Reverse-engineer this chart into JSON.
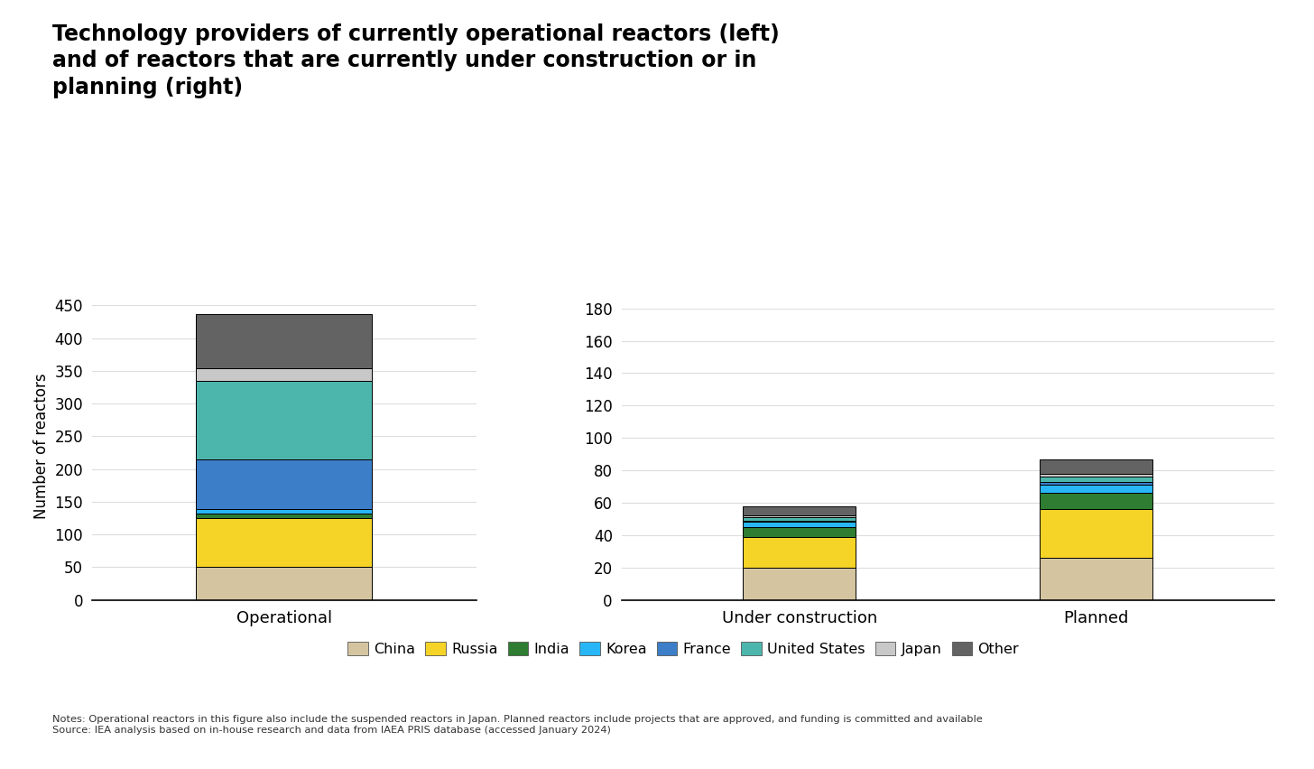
{
  "title": "Technology providers of currently operational reactors (left)\nand of reactors that are currently under construction or in\nplanning (right)",
  "ylabel": "Number of reactors",
  "segments": [
    "China",
    "Russia",
    "India",
    "Korea",
    "France",
    "United States",
    "Japan",
    "Other"
  ],
  "colors": [
    "#d4c5a0",
    "#f5d327",
    "#2e7d32",
    "#29b6f6",
    "#3d7ec8",
    "#4db6ac",
    "#c8c8c8",
    "#636363"
  ],
  "operational": [
    50,
    75,
    7,
    7,
    75,
    120,
    20,
    83
  ],
  "under_construction": [
    20,
    19,
    6,
    3,
    1,
    2,
    1,
    6
  ],
  "planned": [
    26,
    30,
    10,
    5,
    2,
    3,
    2,
    9
  ],
  "ylim_left": [
    0,
    470
  ],
  "ylim_right": [
    0,
    190
  ],
  "yticks_left": [
    0,
    50,
    100,
    150,
    200,
    250,
    300,
    350,
    400,
    450
  ],
  "yticks_right": [
    0,
    20,
    40,
    60,
    80,
    100,
    120,
    140,
    160,
    180
  ],
  "note": "Notes: Operational reactors in this figure also include the suspended reactors in Japan. Planned reactors include projects that are approved, and funding is committed and available\nSource: IEA analysis based on in-house research and data from IAEA PRIS database (accessed January 2024)",
  "background_color": "#ffffff",
  "bar_edge_color": "#000000",
  "bar_linewidth": 0.7,
  "grid_color": "#dddddd",
  "grid_linewidth": 0.8
}
